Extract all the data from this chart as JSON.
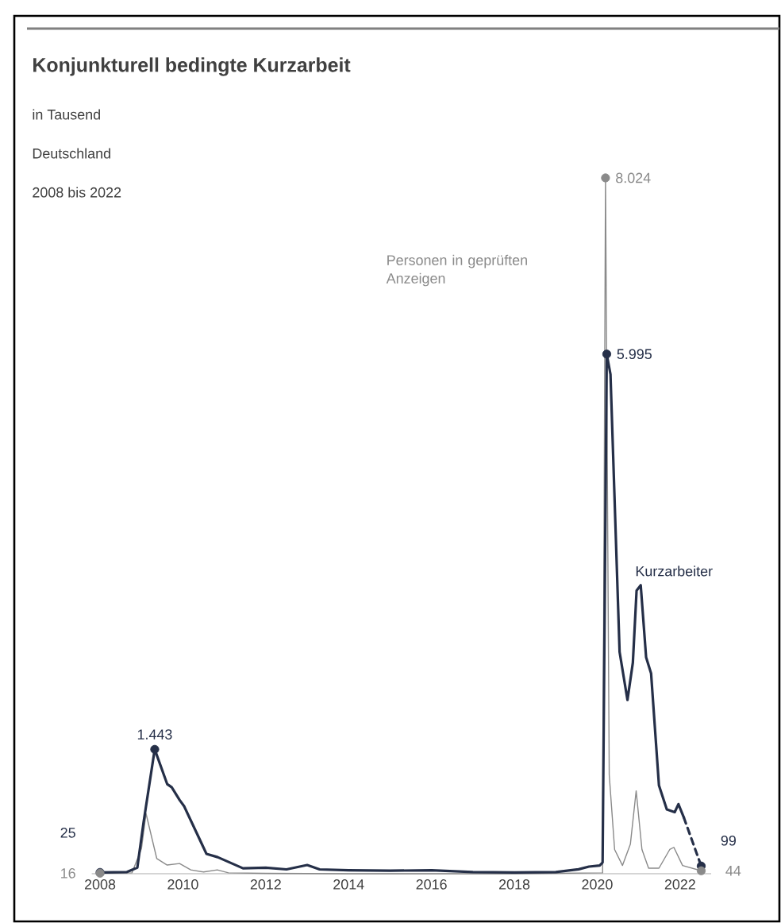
{
  "chart_data": {
    "type": "line",
    "title": "Konjunkturell bedingte Kurzarbeit",
    "subtitle": "in Tausend",
    "annotations": [
      "Deutschland",
      "2008 bis 2022"
    ],
    "xlim": [
      2007.8,
      2022.75
    ],
    "xticks": [
      2008,
      2010,
      2012,
      2014,
      2016,
      2018,
      2020,
      2022
    ],
    "tick_labels": "x",
    "grid": false,
    "legend": false,
    "series": [
      {
        "name": "Kurzarbeiter",
        "color": "#252f48",
        "line_style": "solid",
        "x": [
          2008.0,
          2008.65,
          2008.9,
          2009.05,
          2009.32,
          2009.62,
          2009.73,
          2009.92,
          2010.03,
          2010.57,
          2010.84,
          2011.45,
          2012.0,
          2012.5,
          2013.0,
          2013.3,
          2014.0,
          2015.0,
          2016.0,
          2017.0,
          2018.0,
          2019.0,
          2019.55,
          2019.8,
          2020.06,
          2020.13,
          2020.23,
          2020.32,
          2020.54,
          2020.73,
          2020.86,
          2020.95,
          2021.05,
          2021.18,
          2021.3,
          2021.49,
          2021.68,
          2021.87,
          2021.96,
          2022.09
        ],
        "values": [
          25,
          30,
          80,
          600,
          1443,
          1043,
          1006,
          860,
          787,
          238,
          201,
          73,
          80,
          60,
          110,
          60,
          50,
          45,
          50,
          30,
          25,
          30,
          61,
          92,
          104,
          140,
          5995,
          5762,
          2564,
          2011,
          2441,
          3271,
          3333,
          2503,
          2318,
          1027,
          750,
          719,
          812,
          658
        ],
        "value_labels": [
          "25",
          null,
          null,
          null,
          "1.443",
          null,
          null,
          null,
          null,
          null,
          null,
          null,
          null,
          null,
          null,
          null,
          null,
          null,
          null,
          null,
          null,
          null,
          null,
          null,
          null,
          null,
          "5.995",
          null,
          null,
          null,
          null,
          null,
          null,
          null,
          null,
          null,
          null,
          null,
          null,
          null
        ]
      },
      {
        "color": "#252f48",
        "line_style": "dashed",
        "x": [
          2022.09,
          2022.51
        ],
        "values": [
          658,
          99
        ],
        "value_labels": [
          null,
          "99"
        ]
      },
      {
        "name": "Personen in geprüften Anzeigen",
        "color": "#8a8a8a",
        "line_style": "solid",
        "x": [
          2008.0,
          2008.77,
          2009.0,
          2009.11,
          2009.37,
          2009.62,
          2009.92,
          2010.19,
          2010.5,
          2010.83,
          2011.1,
          2012.0,
          2014.0,
          2016.0,
          2018.0,
          2020.13,
          2020.2,
          2020.29,
          2020.42,
          2020.61,
          2020.8,
          2020.94,
          2021.08,
          2021.24,
          2021.49,
          2021.75,
          2021.85,
          2022.06,
          2022.51
        ],
        "values": [
          16,
          20,
          300,
          703,
          184,
          110,
          128,
          55,
          30,
          55,
          20,
          15,
          10,
          10,
          10,
          20,
          8024,
          1150,
          289,
          105,
          350,
          965,
          289,
          74,
          74,
          289,
          314,
          105,
          44
        ],
        "value_labels": [
          "16",
          null,
          null,
          null,
          null,
          null,
          null,
          null,
          null,
          null,
          null,
          null,
          null,
          null,
          null,
          null,
          "8.024",
          null,
          null,
          null,
          null,
          null,
          null,
          null,
          null,
          null,
          null,
          null,
          "44"
        ]
      }
    ]
  }
}
